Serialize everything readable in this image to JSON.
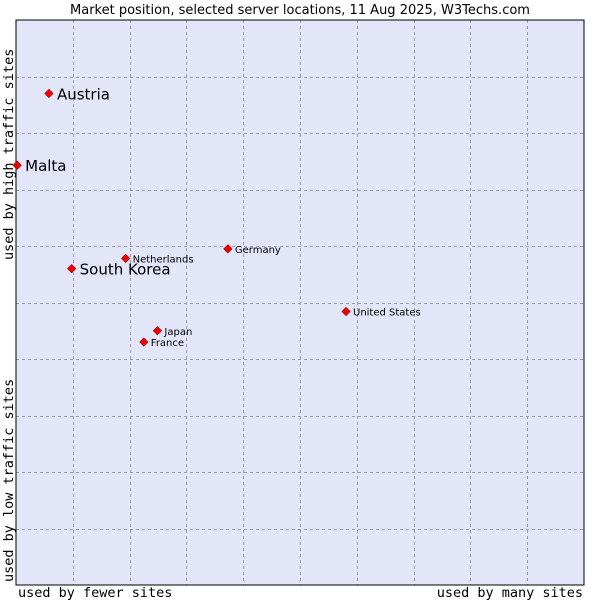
{
  "chart_data": {
    "type": "scatter",
    "title": "Market position, selected server locations, 11 Aug 2025, W3Techs.com",
    "xlabel_left": "used by fewer sites",
    "xlabel_right": "used by many sites",
    "ylabel_top": "used by high traffic sites",
    "ylabel_bottom": "used by low traffic sites",
    "xlim": [
      0,
      10
    ],
    "ylim": [
      0,
      10
    ],
    "grid": true,
    "colors": {
      "plot_background": "#e3e5f8",
      "point": "#ee0000",
      "grid": "#9a9ab4",
      "border": "#000000"
    },
    "points": [
      {
        "name": "Austria",
        "x": 0.58,
        "y": 8.7,
        "emphasis": true
      },
      {
        "name": "Malta",
        "x": 0.02,
        "y": 7.43,
        "emphasis": true
      },
      {
        "name": "South Korea",
        "x": 0.98,
        "y": 5.6,
        "emphasis": true
      },
      {
        "name": "Netherlands",
        "x": 1.93,
        "y": 5.78,
        "emphasis": false
      },
      {
        "name": "Germany",
        "x": 3.73,
        "y": 5.95,
        "emphasis": false
      },
      {
        "name": "United States",
        "x": 5.81,
        "y": 4.84,
        "emphasis": false
      },
      {
        "name": "Japan",
        "x": 2.49,
        "y": 4.5,
        "emphasis": false
      },
      {
        "name": "France",
        "x": 2.25,
        "y": 4.3,
        "emphasis": false
      }
    ]
  }
}
